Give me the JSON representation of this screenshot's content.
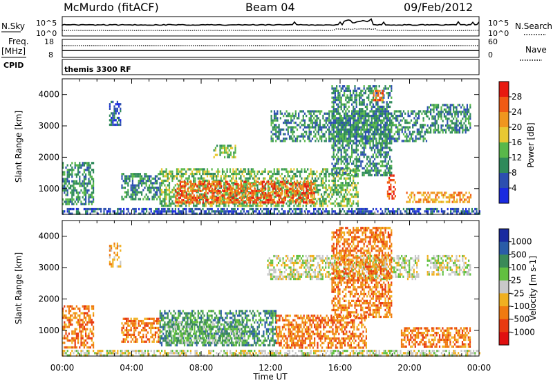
{
  "header": {
    "station": "McMurdo (fitACF)",
    "beam": "Beam 04",
    "date": "09/Feb/2012"
  },
  "top_panels": {
    "nsky_label": "N.Sky",
    "nsky_ticks": [
      "10^5",
      "10^0"
    ],
    "nsearch_label": "N.Search",
    "nsearch_ticks": [
      "10^5",
      "10^0"
    ],
    "freq_label_1": "Freq.",
    "freq_label_2": "[MHz]",
    "freq_ticks": [
      "18",
      "8"
    ],
    "nave_label": "Nave",
    "nave_ticks": [
      "60",
      "0"
    ],
    "cpid_label": "CPID",
    "cpid_value": "themis 3300 RF"
  },
  "chart_data": [
    {
      "type": "heatmap",
      "name": "power-panel",
      "ylabel": "Slant Range [km]",
      "xlabel": "Time UT",
      "x_ticks": [
        "00:00",
        "04:00",
        "08:00",
        "12:00",
        "16:00",
        "20:00",
        "00:00"
      ],
      "x_range_hours": [
        0,
        24
      ],
      "y_ticks": [
        1000,
        2000,
        3000,
        4000
      ],
      "ylim": [
        180,
        4500
      ],
      "colorbar_label": "Power [dB]",
      "colorbar_ticks": [
        "4",
        "8",
        "12",
        "16",
        "20",
        "24",
        "28"
      ],
      "colorbar_colors": [
        "#1a2ae0",
        "#2c4fb0",
        "#2f8a5a",
        "#59b84a",
        "#e8c832",
        "#f0961e",
        "#f05a14",
        "#e81a10"
      ],
      "scatter_regions": [
        {
          "t0": 0.0,
          "t1": 1.8,
          "r0": 500,
          "r1": 1850,
          "level": 2
        },
        {
          "t0": 2.7,
          "t1": 3.4,
          "r0": 3000,
          "r1": 3800,
          "level": 1
        },
        {
          "t0": 3.4,
          "t1": 5.6,
          "r0": 650,
          "r1": 1500,
          "level": 2
        },
        {
          "t0": 5.6,
          "t1": 17.0,
          "r0": 480,
          "r1": 1650,
          "level": 3
        },
        {
          "t0": 6.5,
          "t1": 14.5,
          "r0": 580,
          "r1": 1250,
          "level": 6
        },
        {
          "t0": 8.7,
          "t1": 10.0,
          "r0": 2000,
          "r1": 2400,
          "level": 3
        },
        {
          "t0": 12.0,
          "t1": 21.0,
          "r0": 2500,
          "r1": 3500,
          "level": 2
        },
        {
          "t0": 15.5,
          "t1": 19.0,
          "r0": 1400,
          "r1": 4300,
          "level": 2
        },
        {
          "t0": 17.9,
          "t1": 18.5,
          "r0": 3850,
          "r1": 4150,
          "level": 6
        },
        {
          "t0": 18.7,
          "t1": 19.2,
          "r0": 650,
          "r1": 1450,
          "level": 6
        },
        {
          "t0": 19.8,
          "t1": 23.5,
          "r0": 550,
          "r1": 900,
          "level": 5
        },
        {
          "t0": 21.0,
          "t1": 23.5,
          "r0": 2800,
          "r1": 3700,
          "level": 2
        },
        {
          "t0": 0.0,
          "t1": 24.0,
          "r0": 190,
          "r1": 380,
          "level": 1
        }
      ]
    },
    {
      "type": "heatmap",
      "name": "velocity-panel",
      "ylabel": "Slant Range [km]",
      "xlabel": "Time UT",
      "x_ticks": [
        "00:00",
        "04:00",
        "08:00",
        "12:00",
        "16:00",
        "20:00",
        "00:00"
      ],
      "x_range_hours": [
        0,
        24
      ],
      "y_ticks": [
        1000,
        2000,
        3000,
        4000
      ],
      "ylim": [
        180,
        4500
      ],
      "colorbar_label": "Velocity [m s-1]",
      "colorbar_ticks": [
        "1000",
        "500",
        "100",
        "25",
        "-25",
        "-100",
        "-500",
        "-1000"
      ],
      "colorbar_colors": [
        "#1a2aa0",
        "#2a5ca8",
        "#3a8a58",
        "#62c040",
        "#c8c8c8",
        "#f0b020",
        "#f07a10",
        "#e83a10",
        "#e01010"
      ],
      "scatter_regions": [
        {
          "t0": 0.0,
          "t1": 1.8,
          "r0": 450,
          "r1": 1800,
          "level": 6
        },
        {
          "t0": 2.7,
          "t1": 3.4,
          "r0": 3000,
          "r1": 3800,
          "level": 5
        },
        {
          "t0": 3.4,
          "t1": 5.6,
          "r0": 600,
          "r1": 1400,
          "level": 6
        },
        {
          "t0": 5.6,
          "t1": 12.3,
          "r0": 500,
          "r1": 1650,
          "level": 2
        },
        {
          "t0": 6.0,
          "t1": 10.5,
          "r0": 600,
          "r1": 1300,
          "level": 3
        },
        {
          "t0": 12.3,
          "t1": 17.5,
          "r0": 450,
          "r1": 1500,
          "level": 6
        },
        {
          "t0": 11.8,
          "t1": 20.5,
          "r0": 2600,
          "r1": 3400,
          "level": 4
        },
        {
          "t0": 15.5,
          "t1": 19.0,
          "r0": 1400,
          "r1": 4300,
          "level": 6
        },
        {
          "t0": 17.9,
          "t1": 18.5,
          "r0": 3850,
          "r1": 4150,
          "level": 6
        },
        {
          "t0": 19.5,
          "t1": 23.5,
          "r0": 500,
          "r1": 1100,
          "level": 6
        },
        {
          "t0": 21.0,
          "t1": 23.5,
          "r0": 2800,
          "r1": 3400,
          "level": 4
        },
        {
          "t0": 0.0,
          "t1": 24.0,
          "r0": 190,
          "r1": 380,
          "level": 4
        }
      ]
    }
  ]
}
